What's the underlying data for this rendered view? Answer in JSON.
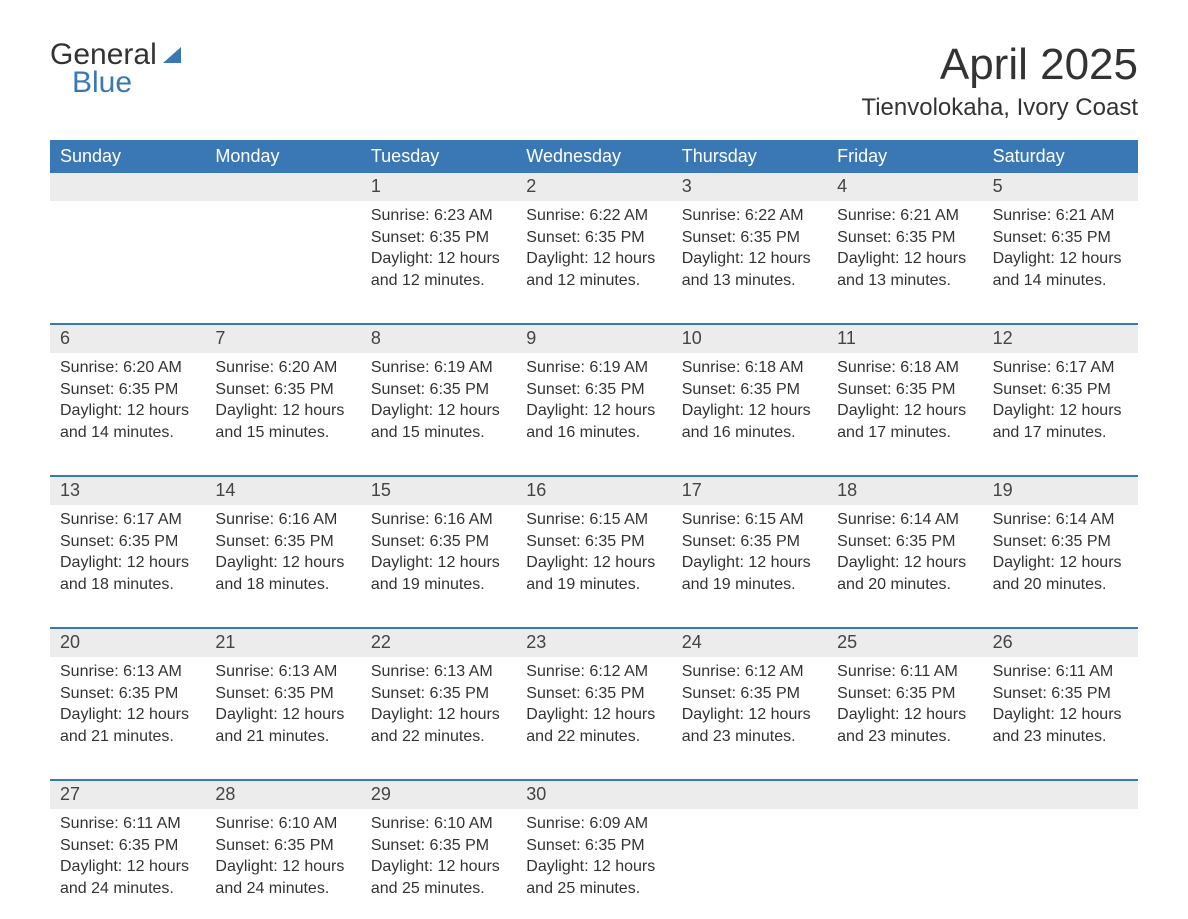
{
  "logo": {
    "line1": "General",
    "line2": "Blue"
  },
  "header": {
    "title": "April 2025",
    "location": "Tienvolokaha, Ivory Coast"
  },
  "colors": {
    "brand_blue": "#3a78b5",
    "row_header_bg": "#ececec",
    "text": "#333333",
    "white": "#ffffff"
  },
  "typography": {
    "title_fontsize": 44,
    "location_fontsize": 24,
    "dayname_fontsize": 18,
    "body_fontsize": 16
  },
  "day_names": [
    "Sunday",
    "Monday",
    "Tuesday",
    "Wednesday",
    "Thursday",
    "Friday",
    "Saturday"
  ],
  "weeks": [
    [
      null,
      null,
      {
        "num": "1",
        "sunrise": "Sunrise: 6:23 AM",
        "sunset": "Sunset: 6:35 PM",
        "daylight1": "Daylight: 12 hours",
        "daylight2": "and 12 minutes."
      },
      {
        "num": "2",
        "sunrise": "Sunrise: 6:22 AM",
        "sunset": "Sunset: 6:35 PM",
        "daylight1": "Daylight: 12 hours",
        "daylight2": "and 12 minutes."
      },
      {
        "num": "3",
        "sunrise": "Sunrise: 6:22 AM",
        "sunset": "Sunset: 6:35 PM",
        "daylight1": "Daylight: 12 hours",
        "daylight2": "and 13 minutes."
      },
      {
        "num": "4",
        "sunrise": "Sunrise: 6:21 AM",
        "sunset": "Sunset: 6:35 PM",
        "daylight1": "Daylight: 12 hours",
        "daylight2": "and 13 minutes."
      },
      {
        "num": "5",
        "sunrise": "Sunrise: 6:21 AM",
        "sunset": "Sunset: 6:35 PM",
        "daylight1": "Daylight: 12 hours",
        "daylight2": "and 14 minutes."
      }
    ],
    [
      {
        "num": "6",
        "sunrise": "Sunrise: 6:20 AM",
        "sunset": "Sunset: 6:35 PM",
        "daylight1": "Daylight: 12 hours",
        "daylight2": "and 14 minutes."
      },
      {
        "num": "7",
        "sunrise": "Sunrise: 6:20 AM",
        "sunset": "Sunset: 6:35 PM",
        "daylight1": "Daylight: 12 hours",
        "daylight2": "and 15 minutes."
      },
      {
        "num": "8",
        "sunrise": "Sunrise: 6:19 AM",
        "sunset": "Sunset: 6:35 PM",
        "daylight1": "Daylight: 12 hours",
        "daylight2": "and 15 minutes."
      },
      {
        "num": "9",
        "sunrise": "Sunrise: 6:19 AM",
        "sunset": "Sunset: 6:35 PM",
        "daylight1": "Daylight: 12 hours",
        "daylight2": "and 16 minutes."
      },
      {
        "num": "10",
        "sunrise": "Sunrise: 6:18 AM",
        "sunset": "Sunset: 6:35 PM",
        "daylight1": "Daylight: 12 hours",
        "daylight2": "and 16 minutes."
      },
      {
        "num": "11",
        "sunrise": "Sunrise: 6:18 AM",
        "sunset": "Sunset: 6:35 PM",
        "daylight1": "Daylight: 12 hours",
        "daylight2": "and 17 minutes."
      },
      {
        "num": "12",
        "sunrise": "Sunrise: 6:17 AM",
        "sunset": "Sunset: 6:35 PM",
        "daylight1": "Daylight: 12 hours",
        "daylight2": "and 17 minutes."
      }
    ],
    [
      {
        "num": "13",
        "sunrise": "Sunrise: 6:17 AM",
        "sunset": "Sunset: 6:35 PM",
        "daylight1": "Daylight: 12 hours",
        "daylight2": "and 18 minutes."
      },
      {
        "num": "14",
        "sunrise": "Sunrise: 6:16 AM",
        "sunset": "Sunset: 6:35 PM",
        "daylight1": "Daylight: 12 hours",
        "daylight2": "and 18 minutes."
      },
      {
        "num": "15",
        "sunrise": "Sunrise: 6:16 AM",
        "sunset": "Sunset: 6:35 PM",
        "daylight1": "Daylight: 12 hours",
        "daylight2": "and 19 minutes."
      },
      {
        "num": "16",
        "sunrise": "Sunrise: 6:15 AM",
        "sunset": "Sunset: 6:35 PM",
        "daylight1": "Daylight: 12 hours",
        "daylight2": "and 19 minutes."
      },
      {
        "num": "17",
        "sunrise": "Sunrise: 6:15 AM",
        "sunset": "Sunset: 6:35 PM",
        "daylight1": "Daylight: 12 hours",
        "daylight2": "and 19 minutes."
      },
      {
        "num": "18",
        "sunrise": "Sunrise: 6:14 AM",
        "sunset": "Sunset: 6:35 PM",
        "daylight1": "Daylight: 12 hours",
        "daylight2": "and 20 minutes."
      },
      {
        "num": "19",
        "sunrise": "Sunrise: 6:14 AM",
        "sunset": "Sunset: 6:35 PM",
        "daylight1": "Daylight: 12 hours",
        "daylight2": "and 20 minutes."
      }
    ],
    [
      {
        "num": "20",
        "sunrise": "Sunrise: 6:13 AM",
        "sunset": "Sunset: 6:35 PM",
        "daylight1": "Daylight: 12 hours",
        "daylight2": "and 21 minutes."
      },
      {
        "num": "21",
        "sunrise": "Sunrise: 6:13 AM",
        "sunset": "Sunset: 6:35 PM",
        "daylight1": "Daylight: 12 hours",
        "daylight2": "and 21 minutes."
      },
      {
        "num": "22",
        "sunrise": "Sunrise: 6:13 AM",
        "sunset": "Sunset: 6:35 PM",
        "daylight1": "Daylight: 12 hours",
        "daylight2": "and 22 minutes."
      },
      {
        "num": "23",
        "sunrise": "Sunrise: 6:12 AM",
        "sunset": "Sunset: 6:35 PM",
        "daylight1": "Daylight: 12 hours",
        "daylight2": "and 22 minutes."
      },
      {
        "num": "24",
        "sunrise": "Sunrise: 6:12 AM",
        "sunset": "Sunset: 6:35 PM",
        "daylight1": "Daylight: 12 hours",
        "daylight2": "and 23 minutes."
      },
      {
        "num": "25",
        "sunrise": "Sunrise: 6:11 AM",
        "sunset": "Sunset: 6:35 PM",
        "daylight1": "Daylight: 12 hours",
        "daylight2": "and 23 minutes."
      },
      {
        "num": "26",
        "sunrise": "Sunrise: 6:11 AM",
        "sunset": "Sunset: 6:35 PM",
        "daylight1": "Daylight: 12 hours",
        "daylight2": "and 23 minutes."
      }
    ],
    [
      {
        "num": "27",
        "sunrise": "Sunrise: 6:11 AM",
        "sunset": "Sunset: 6:35 PM",
        "daylight1": "Daylight: 12 hours",
        "daylight2": "and 24 minutes."
      },
      {
        "num": "28",
        "sunrise": "Sunrise: 6:10 AM",
        "sunset": "Sunset: 6:35 PM",
        "daylight1": "Daylight: 12 hours",
        "daylight2": "and 24 minutes."
      },
      {
        "num": "29",
        "sunrise": "Sunrise: 6:10 AM",
        "sunset": "Sunset: 6:35 PM",
        "daylight1": "Daylight: 12 hours",
        "daylight2": "and 25 minutes."
      },
      {
        "num": "30",
        "sunrise": "Sunrise: 6:09 AM",
        "sunset": "Sunset: 6:35 PM",
        "daylight1": "Daylight: 12 hours",
        "daylight2": "and 25 minutes."
      },
      null,
      null,
      null
    ]
  ]
}
